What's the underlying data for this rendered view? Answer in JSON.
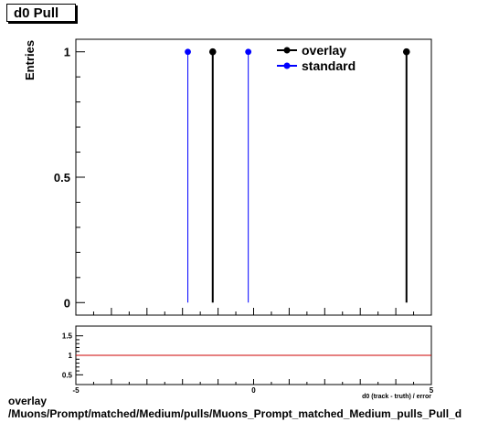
{
  "header": {
    "title": "d0 Pull"
  },
  "caption": {
    "line1": "overlay",
    "line2": "/Muons/Prompt/matched/Medium/pulls/Muons_Prompt_matched_Medium_pulls_Pull_d"
  },
  "colors": {
    "overlay": "#000000",
    "standard": "#0000ff",
    "ratio_line": "#cc0000"
  },
  "chart_data": [
    {
      "type": "line",
      "title": "d0 Pull",
      "ylabel": "Entries",
      "xlim": [
        -5,
        5
      ],
      "ylim": [
        -0.05,
        1.05
      ],
      "y_ticks": [
        "0",
        "0.5",
        "1"
      ],
      "legend_position": "top-right",
      "series": [
        {
          "name": "overlay",
          "color": "#000000",
          "x": [
            -1.15,
            4.3
          ],
          "y": [
            1,
            1
          ]
        },
        {
          "name": "standard",
          "color": "#0000ff",
          "x": [
            -1.85,
            -0.15
          ],
          "y": [
            1,
            1
          ]
        }
      ]
    },
    {
      "type": "line",
      "xlabel": "d0 (track - truth) / error",
      "xlim": [
        -5,
        5
      ],
      "ylim": [
        0.25,
        1.75
      ],
      "x_ticks": [
        "-5",
        "0",
        "5"
      ],
      "y_ticks": [
        "0.5",
        "1",
        "1.5"
      ],
      "reference_line": 1
    }
  ]
}
